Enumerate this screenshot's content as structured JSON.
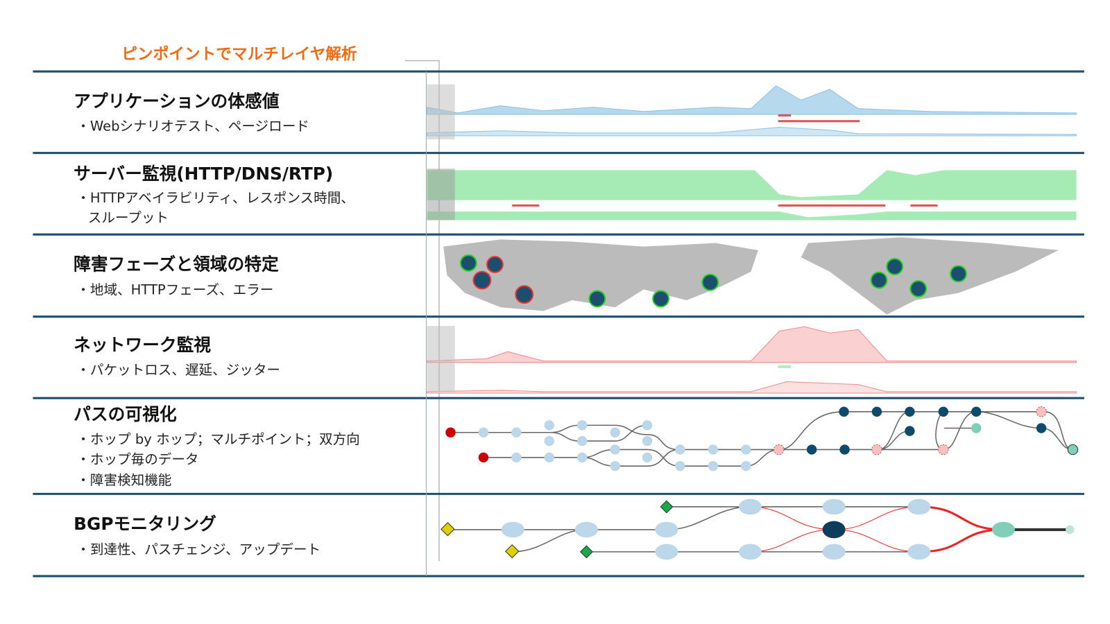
{
  "header": {
    "title": "ピンポイントでマルチレイヤ解析"
  },
  "rows": [
    {
      "title": "アプリケーションの体感値",
      "lines": [
        "・Webシナリオテスト、ページロード"
      ]
    },
    {
      "title": "サーバー監視(HTTP/DNS/RTP)",
      "lines": [
        "・HTTPアベイラビリティ、レスポンス時間、",
        "スループット"
      ]
    },
    {
      "title": "障害フェーズと領域の特定",
      "lines": [
        "・地域、HTTPフェーズ、エラー"
      ]
    },
    {
      "title": "ネットワーク監視",
      "lines": [
        "・パケットロス、遅延、ジッター"
      ]
    },
    {
      "title": "パスの可視化",
      "lines": [
        "・ホップ by ホップ；マルチポイント；双方向",
        "・ホップ毎のデータ",
        "・障害検知機能"
      ]
    },
    {
      "title": "BGPモニタリング",
      "lines": [
        "・到達性、パスチェンジ、アップデート"
      ]
    }
  ]
}
